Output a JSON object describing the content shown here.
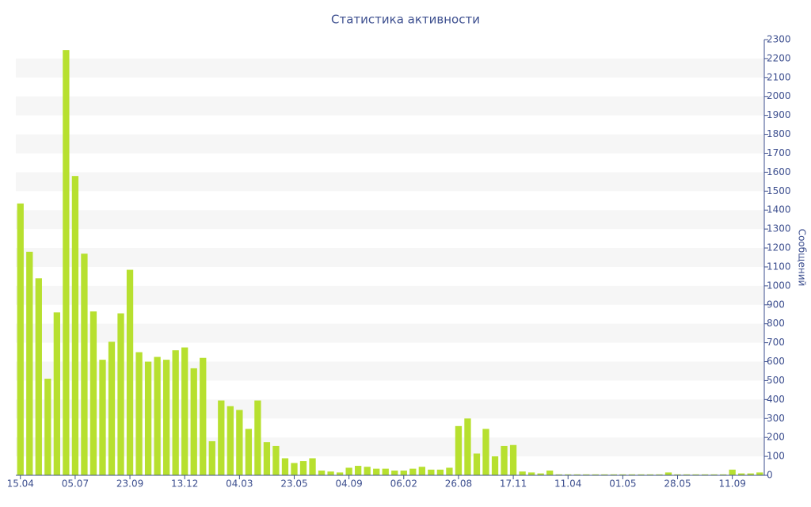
{
  "chart_data": {
    "type": "bar",
    "title": "Статистика активности",
    "y_label": "Сообщений",
    "color": "#b7e02f",
    "grid": true,
    "categories": [
      "15.04",
      null,
      null,
      null,
      null,
      null,
      "05.07",
      null,
      null,
      null,
      null,
      null,
      "23.09",
      null,
      null,
      null,
      null,
      null,
      "13.12",
      null,
      null,
      null,
      null,
      null,
      "04.03",
      null,
      null,
      null,
      null,
      null,
      "23.05",
      null,
      null,
      null,
      null,
      null,
      "04.09",
      null,
      null,
      null,
      null,
      null,
      "06.02",
      null,
      null,
      null,
      null,
      null,
      "26.08",
      null,
      null,
      null,
      null,
      null,
      "17.11",
      null,
      null,
      null,
      null,
      null,
      "11.04",
      null,
      null,
      null,
      null,
      null,
      "01.05",
      null,
      null,
      null,
      null,
      null,
      "28.05",
      null,
      null,
      null,
      null,
      null,
      "11.09",
      null,
      null,
      null
    ],
    "values": [
      1435,
      1180,
      1040,
      510,
      860,
      2245,
      1580,
      1170,
      865,
      610,
      705,
      855,
      1085,
      650,
      600,
      625,
      610,
      660,
      675,
      565,
      620,
      180,
      395,
      365,
      345,
      245,
      395,
      175,
      155,
      90,
      65,
      75,
      90,
      25,
      20,
      15,
      40,
      50,
      45,
      35,
      35,
      25,
      25,
      35,
      45,
      30,
      30,
      40,
      260,
      300,
      115,
      245,
      100,
      155,
      160,
      20,
      15,
      10,
      25,
      5,
      5,
      5,
      5,
      5,
      5,
      5,
      5,
      5,
      5,
      5,
      5,
      15,
      5,
      5,
      5,
      5,
      5,
      5,
      30,
      10,
      10,
      15
    ],
    "ylim": [
      0,
      2300
    ],
    "yticks": [
      0,
      100,
      200,
      300,
      400,
      500,
      600,
      700,
      800,
      900,
      1000,
      1100,
      1200,
      1300,
      1400,
      1500,
      1600,
      1700,
      1800,
      1900,
      2000,
      2100,
      2200,
      2300
    ]
  }
}
